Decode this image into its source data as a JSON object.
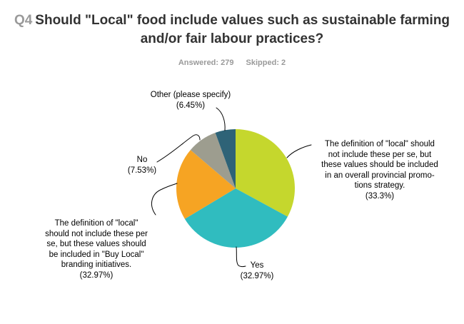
{
  "header": {
    "qnum": "Q4",
    "title_line1": "Should \"Local\" food include values such as sustainable farming",
    "title_line2": "and/or fair labour practices?",
    "answered": "Answered: 279",
    "skipped": "Skipped: 2"
  },
  "chart_data": {
    "type": "pie",
    "title": "Q4 Should \"Local\" food include values such as sustainable farming and/or fair labour practices?",
    "answered_count": 279,
    "skipped_count": 2,
    "legend_position": "callout-labels",
    "start_angle_deg": 0,
    "clockwise": true,
    "center": [
      330,
      264
    ],
    "radius": 83,
    "categories": [
      "The definition of \"local\" should not include these per se, but these values should be included in an overall provincial promotions strategy.",
      "Yes",
      "The definition of \"local\" should not include these per se, but these values should be included in \"Buy Local\" branding initiatives.",
      "No",
      "Other (please specify)"
    ],
    "values_pct": [
      33.3,
      32.97,
      32.97,
      7.53,
      6.45
    ],
    "slices": [
      {
        "name": "provincial-strategy",
        "color": "#c5d72d",
        "pct_text": "(33.3%)",
        "sweep_deg": 118.5,
        "label_lines": [
          "The definition of \"local\" should",
          "not include these per se, but",
          "these values should be included",
          "in an overall provincial promo-",
          "tions strategy.",
          "(33.3%)"
        ]
      },
      {
        "name": "yes",
        "color": "#30bcbf",
        "pct_text": "(32.97%)",
        "sweep_deg": 120.5,
        "label_lines": [
          "Yes",
          "(32.97%)"
        ]
      },
      {
        "name": "buy-local-branding",
        "color": "#f6a423",
        "pct_text": "(32.97%)",
        "sweep_deg": 71.5,
        "label_lines": [
          "The definition of \"local\"",
          "should not include these per",
          "se, but these values should",
          "be included in \"Buy Local\"",
          "branding initiatives.",
          "(32.97%)"
        ]
      },
      {
        "name": "no",
        "color": "#9d9d8f",
        "pct_text": "(7.53%)",
        "sweep_deg": 29.5,
        "label_lines": [
          "No",
          "(7.53%)"
        ]
      },
      {
        "name": "other-please-specify",
        "color": "#2e6377",
        "pct_text": "(6.45%)",
        "sweep_deg": 20.0,
        "label_lines": [
          "Other (please specify)",
          "(6.45%)"
        ]
      }
    ]
  }
}
